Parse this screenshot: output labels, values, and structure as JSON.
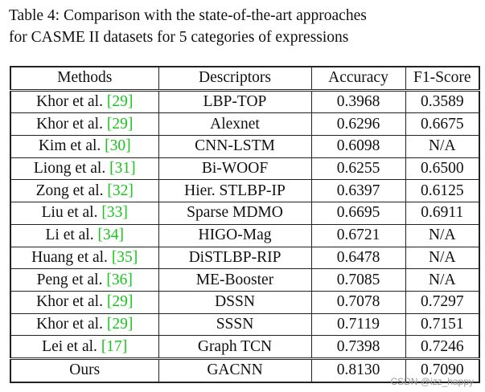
{
  "caption": {
    "line1": "Table 4:  Comparison with the state-of-the-art approaches",
    "line2": "for CASME II datasets for 5 categories of expressions"
  },
  "table": {
    "headers": [
      "Methods",
      "Descriptors",
      "Accuracy",
      "F1-Score"
    ],
    "rows": [
      {
        "method": "Khor et al. ",
        "ref": "[29]",
        "descriptor": "LBP-TOP",
        "accuracy": "0.3968",
        "f1": "0.3589"
      },
      {
        "method": "Khor et al. ",
        "ref": "[29]",
        "descriptor": "Alexnet",
        "accuracy": "0.6296",
        "f1": "0.6675"
      },
      {
        "method": "Kim et al. ",
        "ref": "[30]",
        "descriptor": "CNN-LSTM",
        "accuracy": "0.6098",
        "f1": "N/A"
      },
      {
        "method": "Liong et al. ",
        "ref": "[31]",
        "descriptor": "Bi-WOOF",
        "accuracy": "0.6255",
        "f1": "0.6500"
      },
      {
        "method": "Zong et al. ",
        "ref": "[32]",
        "descriptor": "Hier. STLBP-IP",
        "accuracy": "0.6397",
        "f1": "0.6125"
      },
      {
        "method": "Liu et al. ",
        "ref": "[33]",
        "descriptor": "Sparse MDMO",
        "accuracy": "0.6695",
        "f1": "0.6911"
      },
      {
        "method": "Li et al. ",
        "ref": "[34]",
        "descriptor": "HIGO-Mag",
        "accuracy": "0.6721",
        "f1": "N/A"
      },
      {
        "method": "Huang et al. ",
        "ref": "[35]",
        "descriptor": "DiSTLBP-RIP",
        "accuracy": "0.6478",
        "f1": "N/A"
      },
      {
        "method": "Peng et al. ",
        "ref": "[36]",
        "descriptor": "ME-Booster",
        "accuracy": "0.7085",
        "f1": "N/A"
      },
      {
        "method": "Khor et al. ",
        "ref": "[29]",
        "descriptor": "DSSN",
        "accuracy": "0.7078",
        "f1": "0.7297"
      },
      {
        "method": "Khor et al. ",
        "ref": "[29]",
        "descriptor": "SSSN",
        "accuracy": "0.7119",
        "f1": "0.7151"
      },
      {
        "method": "Lei et al. ",
        "ref": "[17]",
        "descriptor": "Graph TCN",
        "accuracy": "0.7398",
        "f1": "0.7246"
      }
    ],
    "ours": {
      "method": "Ours",
      "descriptor": "GACNN",
      "accuracy": "0.8130",
      "f1": "0.7090"
    }
  },
  "colors": {
    "reference_link": "#19c41c",
    "watermark": "#9a9a9a"
  },
  "watermark": "CSDN @izz_happy"
}
